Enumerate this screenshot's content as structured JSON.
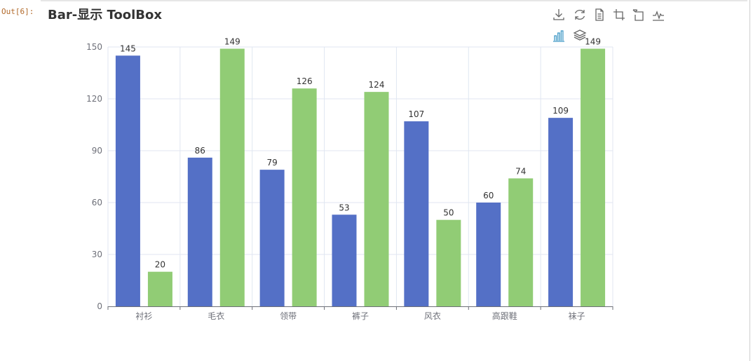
{
  "page": {
    "cell_prompt": "Out[6]:"
  },
  "chart_data": {
    "type": "bar",
    "title": "Bar-显示 ToolBox",
    "categories": [
      "衬衫",
      "毛衣",
      "领带",
      "裤子",
      "风衣",
      "高跟鞋",
      "袜子"
    ],
    "series": [
      {
        "values": [
          145,
          86,
          79,
          53,
          107,
          60,
          109
        ],
        "color": "#5470c6"
      },
      {
        "values": [
          20,
          149,
          126,
          124,
          50,
          74,
          149
        ],
        "color": "#91cc75"
      }
    ],
    "ylim": [
      0,
      150
    ],
    "yticks": [
      0,
      30,
      60,
      90,
      120,
      150
    ],
    "xlabel": "",
    "ylabel": "",
    "grid": true,
    "show_data_labels": true
  },
  "toolbox": {
    "tools": [
      {
        "icon": "download-icon"
      },
      {
        "icon": "refresh-icon"
      },
      {
        "icon": "data-view-icon"
      },
      {
        "icon": "zoom-icon"
      },
      {
        "icon": "zoom-reset-icon"
      },
      {
        "icon": "line-chart-icon"
      },
      {
        "icon": "bar-chart-icon",
        "active": true,
        "active_color": "#3e98c5"
      },
      {
        "icon": "stack-icon"
      }
    ]
  }
}
